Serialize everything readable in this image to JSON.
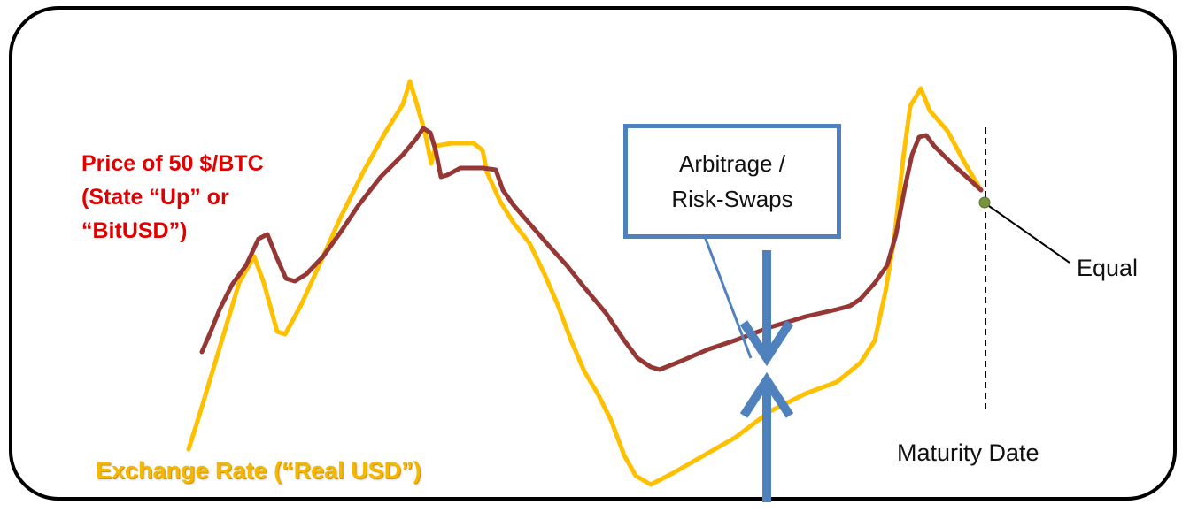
{
  "colors": {
    "bitusd_line": "#953735",
    "real_usd_line": "#ffc000",
    "bitusd_label": "#e00000",
    "real_usd_label": "#f5b800",
    "arrows": "#4f81bd",
    "equal_point": "#77933c",
    "frame": "#000000"
  },
  "labels": {
    "bitusd_line1": "Price of 50 $/BTC",
    "bitusd_line2": "(State “Up” or",
    "bitusd_line3": "“BitUSD”)",
    "real_usd": "Exchange Rate (“Real USD”)",
    "arbitrage_line1": "Arbitrage /",
    "arbitrage_line2": "Risk-Swaps",
    "equal": "Equal",
    "maturity": "Maturity Date"
  },
  "icons": {
    "down_arrow": "arrow-down-icon",
    "up_arrow": "arrow-up-icon"
  }
}
